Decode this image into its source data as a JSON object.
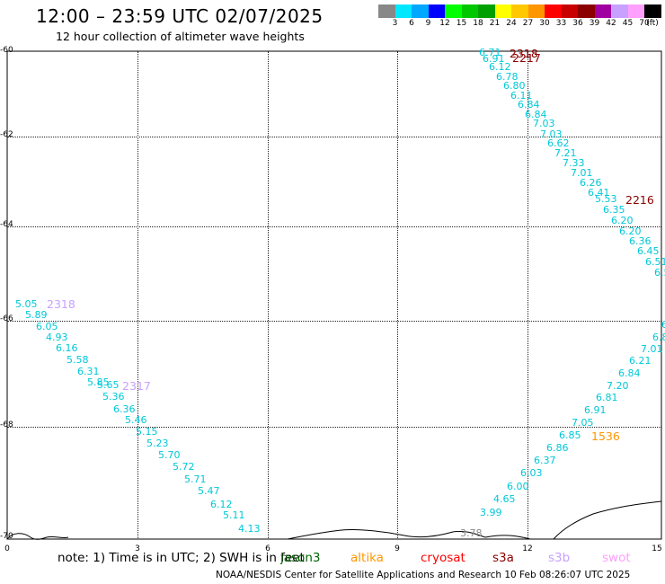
{
  "title": "12:00 – 23:59 UTC 02/07/2025",
  "subtitle": "12 hour collection of altimeter wave heights",
  "legend": {
    "colors": [
      "#888888",
      "#00e8ff",
      "#00a8ff",
      "#0000ff",
      "#00ff00",
      "#00c800",
      "#00a000",
      "#ffff00",
      "#ffc800",
      "#ff9600",
      "#ff0000",
      "#c80000",
      "#8b0000",
      "#a000a0",
      "#c8a0ff",
      "#ffa0ff",
      "#000000"
    ],
    "labels": [
      "3",
      "6",
      "9",
      "12",
      "15",
      "18",
      "21",
      "24",
      "27",
      "30",
      "33",
      "36",
      "39",
      "42",
      "45",
      "70",
      "(ft)"
    ]
  },
  "axes": {
    "y_labels": [
      "-60",
      "-62",
      "-64",
      "-66",
      "-68",
      "-70"
    ],
    "x_labels": [
      "0",
      "3",
      "6",
      "9",
      "12",
      "15"
    ]
  },
  "tracks": {
    "left": [
      "5.05",
      "5.89",
      "6.05",
      "4.93",
      "6.16",
      "5.58",
      "6.31",
      "5.85",
      "5.65",
      "5.36",
      "6.36",
      "5.46",
      "5.15",
      "5.23",
      "5.70",
      "5.72",
      "5.71",
      "5.47",
      "6.12",
      "5.11",
      "4.13"
    ],
    "right_down": [
      "6.71",
      "6.91",
      "6.12",
      "6.78",
      "6.80",
      "6.11",
      "6.84",
      "6.84",
      "7.03",
      "7.03",
      "6.62",
      "7.21",
      "7.33",
      "7.01",
      "6.26",
      "6.41",
      "5.53",
      "6.35",
      "6.20",
      "6.20",
      "6.36",
      "6.45",
      "6.51",
      "6.5"
    ],
    "right_up": [
      "6.",
      "6.8",
      "7.01",
      "6.21",
      "6.84",
      "7.20",
      "6.81",
      "6.91",
      "7.05",
      "6.85",
      "6.86",
      "6.37",
      "6.03",
      "6.00",
      "4.65",
      "3.99"
    ],
    "misc": [
      "3.78"
    ]
  },
  "pass_labels": {
    "p2318_top": "2318",
    "p2217": "2217",
    "p2216": "2216",
    "p2318_left": "2318",
    "p2317": "2317",
    "p1536": "1536"
  },
  "footer": {
    "note": "note:  1) Time is in UTC;  2) SWH is in feet",
    "missions": [
      "jason3",
      "altika",
      "cryosat",
      "s3a",
      "s3b",
      "swot"
    ],
    "mission_colors": [
      "#006400",
      "#ff9600",
      "#ff0000",
      "#8b0000",
      "#c8a0ff",
      "#ffa0ff"
    ],
    "credit": "NOAA/NESDIS Center for Satellite Applications and Research     10 Feb 08:26:07 UTC 2025"
  }
}
